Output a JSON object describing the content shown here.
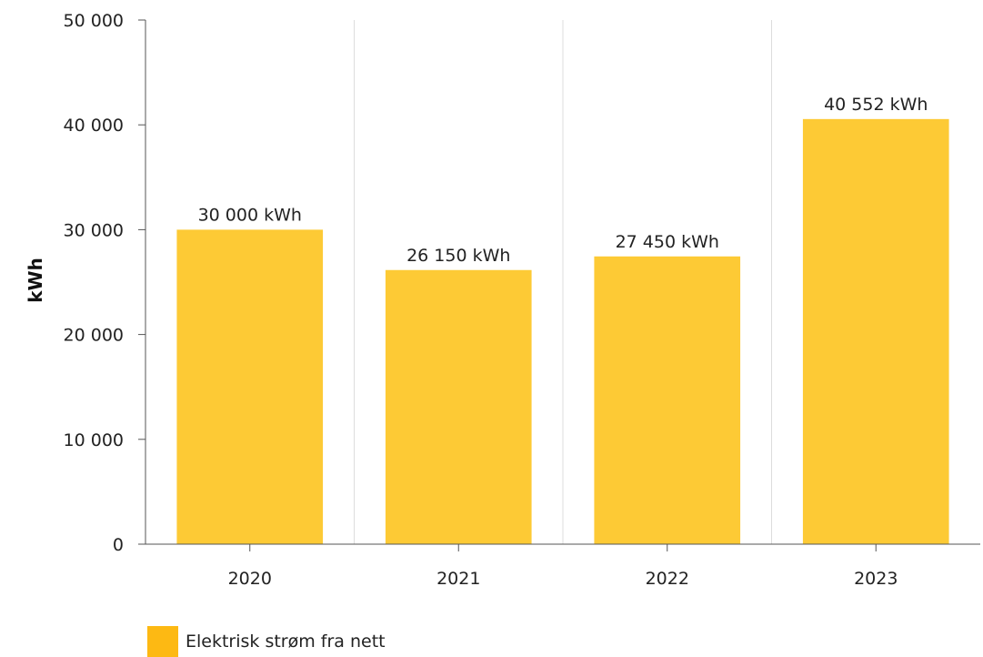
{
  "chart_data": {
    "type": "bar",
    "categories": [
      "2020",
      "2021",
      "2022",
      "2023"
    ],
    "series": [
      {
        "name": "Elektrisk strøm fra nett",
        "values": [
          30000,
          26150,
          27450,
          40552
        ],
        "labels": [
          "30 000 kWh",
          "26 150 kWh",
          "27 450 kWh",
          "40 552 kWh"
        ]
      }
    ],
    "title": "",
    "xlabel": "",
    "ylabel": "kWh",
    "ylim": [
      0,
      50000
    ],
    "yticks": [
      0,
      10000,
      20000,
      30000,
      40000,
      50000
    ],
    "ytick_labels": [
      "0",
      "10 000",
      "20 000",
      "30 000",
      "40 000",
      "50 000"
    ],
    "grid": "vertical",
    "legend_position": "bottom-left",
    "colors": {
      "bar": "#FDCA35",
      "legend": "#FDB913",
      "grid": "#DDDDDD",
      "axis": "#555555"
    }
  }
}
